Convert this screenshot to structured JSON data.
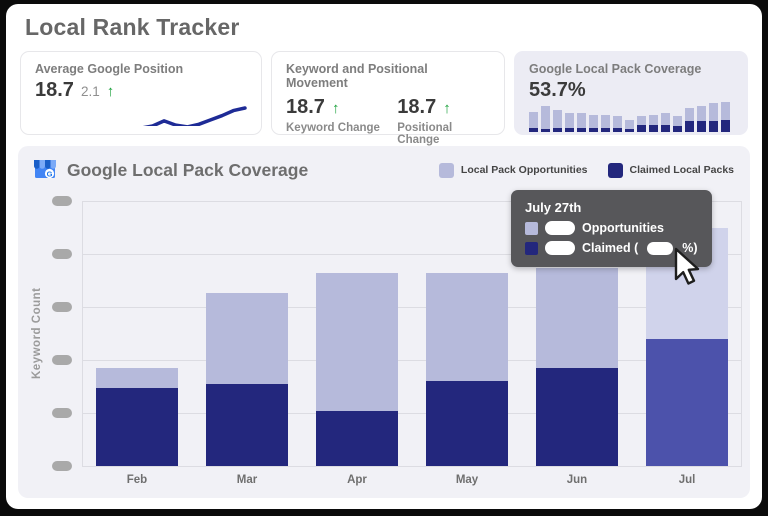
{
  "page": {
    "title": "Local Rank Tracker"
  },
  "cards": {
    "avg_position": {
      "title": "Average Google Position",
      "value": "18.7",
      "delta": "2.1",
      "delta_direction": "up"
    },
    "movement": {
      "title": "Keyword and Positional Movement",
      "keyword": {
        "value": "18.7",
        "direction": "up",
        "label": "Keyword Change"
      },
      "positional": {
        "value": "18.7",
        "direction": "up",
        "label": "Positional Change"
      }
    },
    "coverage": {
      "title": "Google Local Pack Coverage",
      "value": "53.7%"
    }
  },
  "chart_section": {
    "title": "Google Local Pack Coverage",
    "icon": "google-business-storefront",
    "legend": [
      {
        "label": "Local Pack Opportunities",
        "color": "#b6badb"
      },
      {
        "label": "Claimed Local Packs",
        "color": "#23277d"
      }
    ],
    "ylabel": "Keyword Count",
    "tooltip": {
      "title": "July 27th",
      "rows": [
        {
          "label": "Opportunities",
          "color": "#b6badb",
          "value_redacted": true
        },
        {
          "label_prefix": "Claimed (",
          "label_suffix": "%)",
          "color": "#23277d",
          "value_redacted": true
        }
      ]
    }
  },
  "chart_data": [
    {
      "type": "bar",
      "stacked": true,
      "title": "Google Local Pack Coverage",
      "categories": [
        "Feb",
        "Mar",
        "Apr",
        "May",
        "Jun",
        "Jul"
      ],
      "series": [
        {
          "name": "Claimed Local Packs",
          "color": "#23277d",
          "highlight_color": "#4c52ab",
          "values": [
            14.7,
            15.5,
            10.4,
            16.0,
            18.5,
            24.0
          ]
        },
        {
          "name": "Local Pack Opportunities",
          "color": "#b6badb",
          "highlight_color": "#d0d3eb",
          "values": [
            3.8,
            17.1,
            26.0,
            20.4,
            18.9,
            20.9
          ]
        }
      ],
      "highlighted_category": "Jul",
      "xlabel": "",
      "ylabel": "Keyword Count",
      "ylim": [
        0,
        50
      ],
      "y_gridline_step": 10,
      "y_tick_labels_redacted": true,
      "gridlines": true,
      "legend_position": "top-right",
      "values_are_estimates": true
    },
    {
      "type": "line",
      "name": "average-google-position-trend",
      "values": [
        3.0,
        3.4,
        3.1,
        2.2,
        3.6,
        3.2,
        4.0,
        3.8,
        4.6,
        4.5,
        5.0,
        6.2,
        5.2,
        4.8,
        5.4,
        6.4,
        7.4,
        8.6,
        9.2
      ],
      "color": "#1e2b96",
      "axes_hidden": true,
      "values_are_estimates": true
    },
    {
      "type": "bar",
      "stacked": true,
      "name": "coverage-mini-history",
      "series": [
        {
          "name": "Claimed",
          "color": "#23277d",
          "values": [
            4,
            3,
            4,
            4,
            4,
            4,
            4,
            4,
            3,
            7,
            7,
            7,
            6,
            11,
            11,
            11,
            12
          ]
        },
        {
          "name": "Opportunities",
          "color": "#b6badb",
          "values": [
            16,
            23,
            18,
            15,
            15,
            13,
            13,
            12,
            9,
            9,
            10,
            12,
            10,
            13,
            15,
            18,
            18
          ]
        }
      ],
      "axes_hidden": true,
      "values_are_estimates": true
    }
  ]
}
